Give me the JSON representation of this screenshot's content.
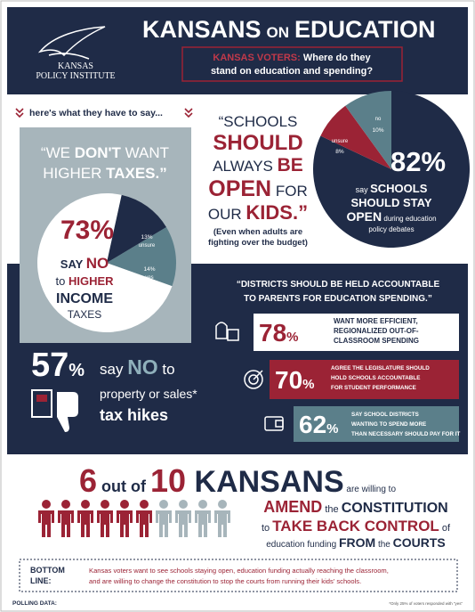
{
  "header": {
    "title_1": "KANSANS",
    "title_2": "ON",
    "title_3": "EDUCATION",
    "logo_1": "KANSAS",
    "logo_2": "POLICY INSTITUTE",
    "subtitle_red": "KANSAS VOTERS:",
    "subtitle_1": " Where do they",
    "subtitle_2": "stand on education and spending?"
  },
  "intro": "here's what they have to say...",
  "taxes": {
    "quote": [
      "“WE ",
      "DON'T",
      " WANT",
      "HIGHER ",
      "TAXES.”"
    ],
    "slices": [
      {
        "value": 73,
        "label": "73%",
        "color": "#ffffff"
      },
      {
        "value": 13,
        "label": "13%",
        "name": "unsure",
        "color": "#1f2b47"
      },
      {
        "value": 14,
        "label": "14%",
        "name": "yes",
        "color": "#5b7f8a"
      }
    ],
    "caption": [
      "SAY ",
      "NO",
      "to ",
      "HIGHER",
      "INCOME",
      "TAXES"
    ]
  },
  "open": {
    "quote": [
      "“SCHOOLS",
      "SHOULD",
      "ALWAYS ",
      "BE",
      "OPEN",
      " FOR",
      "OUR ",
      "KIDS.”"
    ],
    "note": [
      "(Even when adults are",
      "fighting over the budget)"
    ]
  },
  "stay_open": {
    "slices": [
      {
        "value": 82,
        "label": "82%",
        "color": "#1f2b47"
      },
      {
        "value": 8,
        "label": "8%",
        "name": "unsure",
        "color": "#9b2335"
      },
      {
        "value": 10,
        "label": "10%",
        "name": "no",
        "color": "#5b7f8a"
      }
    ],
    "caption": [
      "say ",
      "SCHOOLS",
      "SHOULD STAY",
      "OPEN",
      " during education",
      "policy debates"
    ]
  },
  "accountable": {
    "quote": [
      "“DISTRICTS SHOULD BE HELD ACCOUNTABLE",
      "TO PARENTS FOR EDUCATION SPENDING.”"
    ],
    "stats": [
      {
        "value": 78,
        "unit": "%",
        "lines": [
          "WANT MORE EFFICIENT,",
          "REGIONALIZED OUT-OF-",
          "CLASSROOM SPENDING"
        ]
      },
      {
        "value": 70,
        "unit": "%",
        "lines": [
          "AGREE THE LEGISLATURE SHOULD",
          "HOLD SCHOOLS ACCOUNTABLE",
          "FOR STUDENT PERFORMANCE"
        ]
      },
      {
        "value": 62,
        "unit": "%",
        "lines": [
          "SAY SCHOOL DISTRICTS",
          "WANTING TO SPEND MORE",
          "THAN NECESSARY SHOULD PAY FOR IT"
        ]
      }
    ]
  },
  "tax_hikes": {
    "value": 57,
    "unit": "%",
    "text": [
      "say ",
      "NO",
      " to",
      "property or sales*",
      "tax hikes"
    ]
  },
  "amend": {
    "number": 6,
    "joiner": " out of ",
    "total": 10,
    "subject": " KANSANS",
    "tail": " are willing to",
    "lines": [
      [
        "AMEND",
        " the ",
        "CONSTITUTION"
      ],
      [
        "to ",
        "TAKE BACK CONTROL",
        " of"
      ],
      [
        "education funding ",
        "FROM",
        " the ",
        "COURTS"
      ]
    ]
  },
  "bottom_line": {
    "label": [
      "BOTTOM",
      "LINE:"
    ],
    "text": [
      "Kansas voters want to see schools staying open, education funding actually reaching the classroom,",
      "and are willing to change the constitution to stop the courts from running their kids' schools."
    ]
  },
  "footer": {
    "label": "POLLING DATA:",
    "note": "*Only 25% of voters responded with “yes”"
  }
}
